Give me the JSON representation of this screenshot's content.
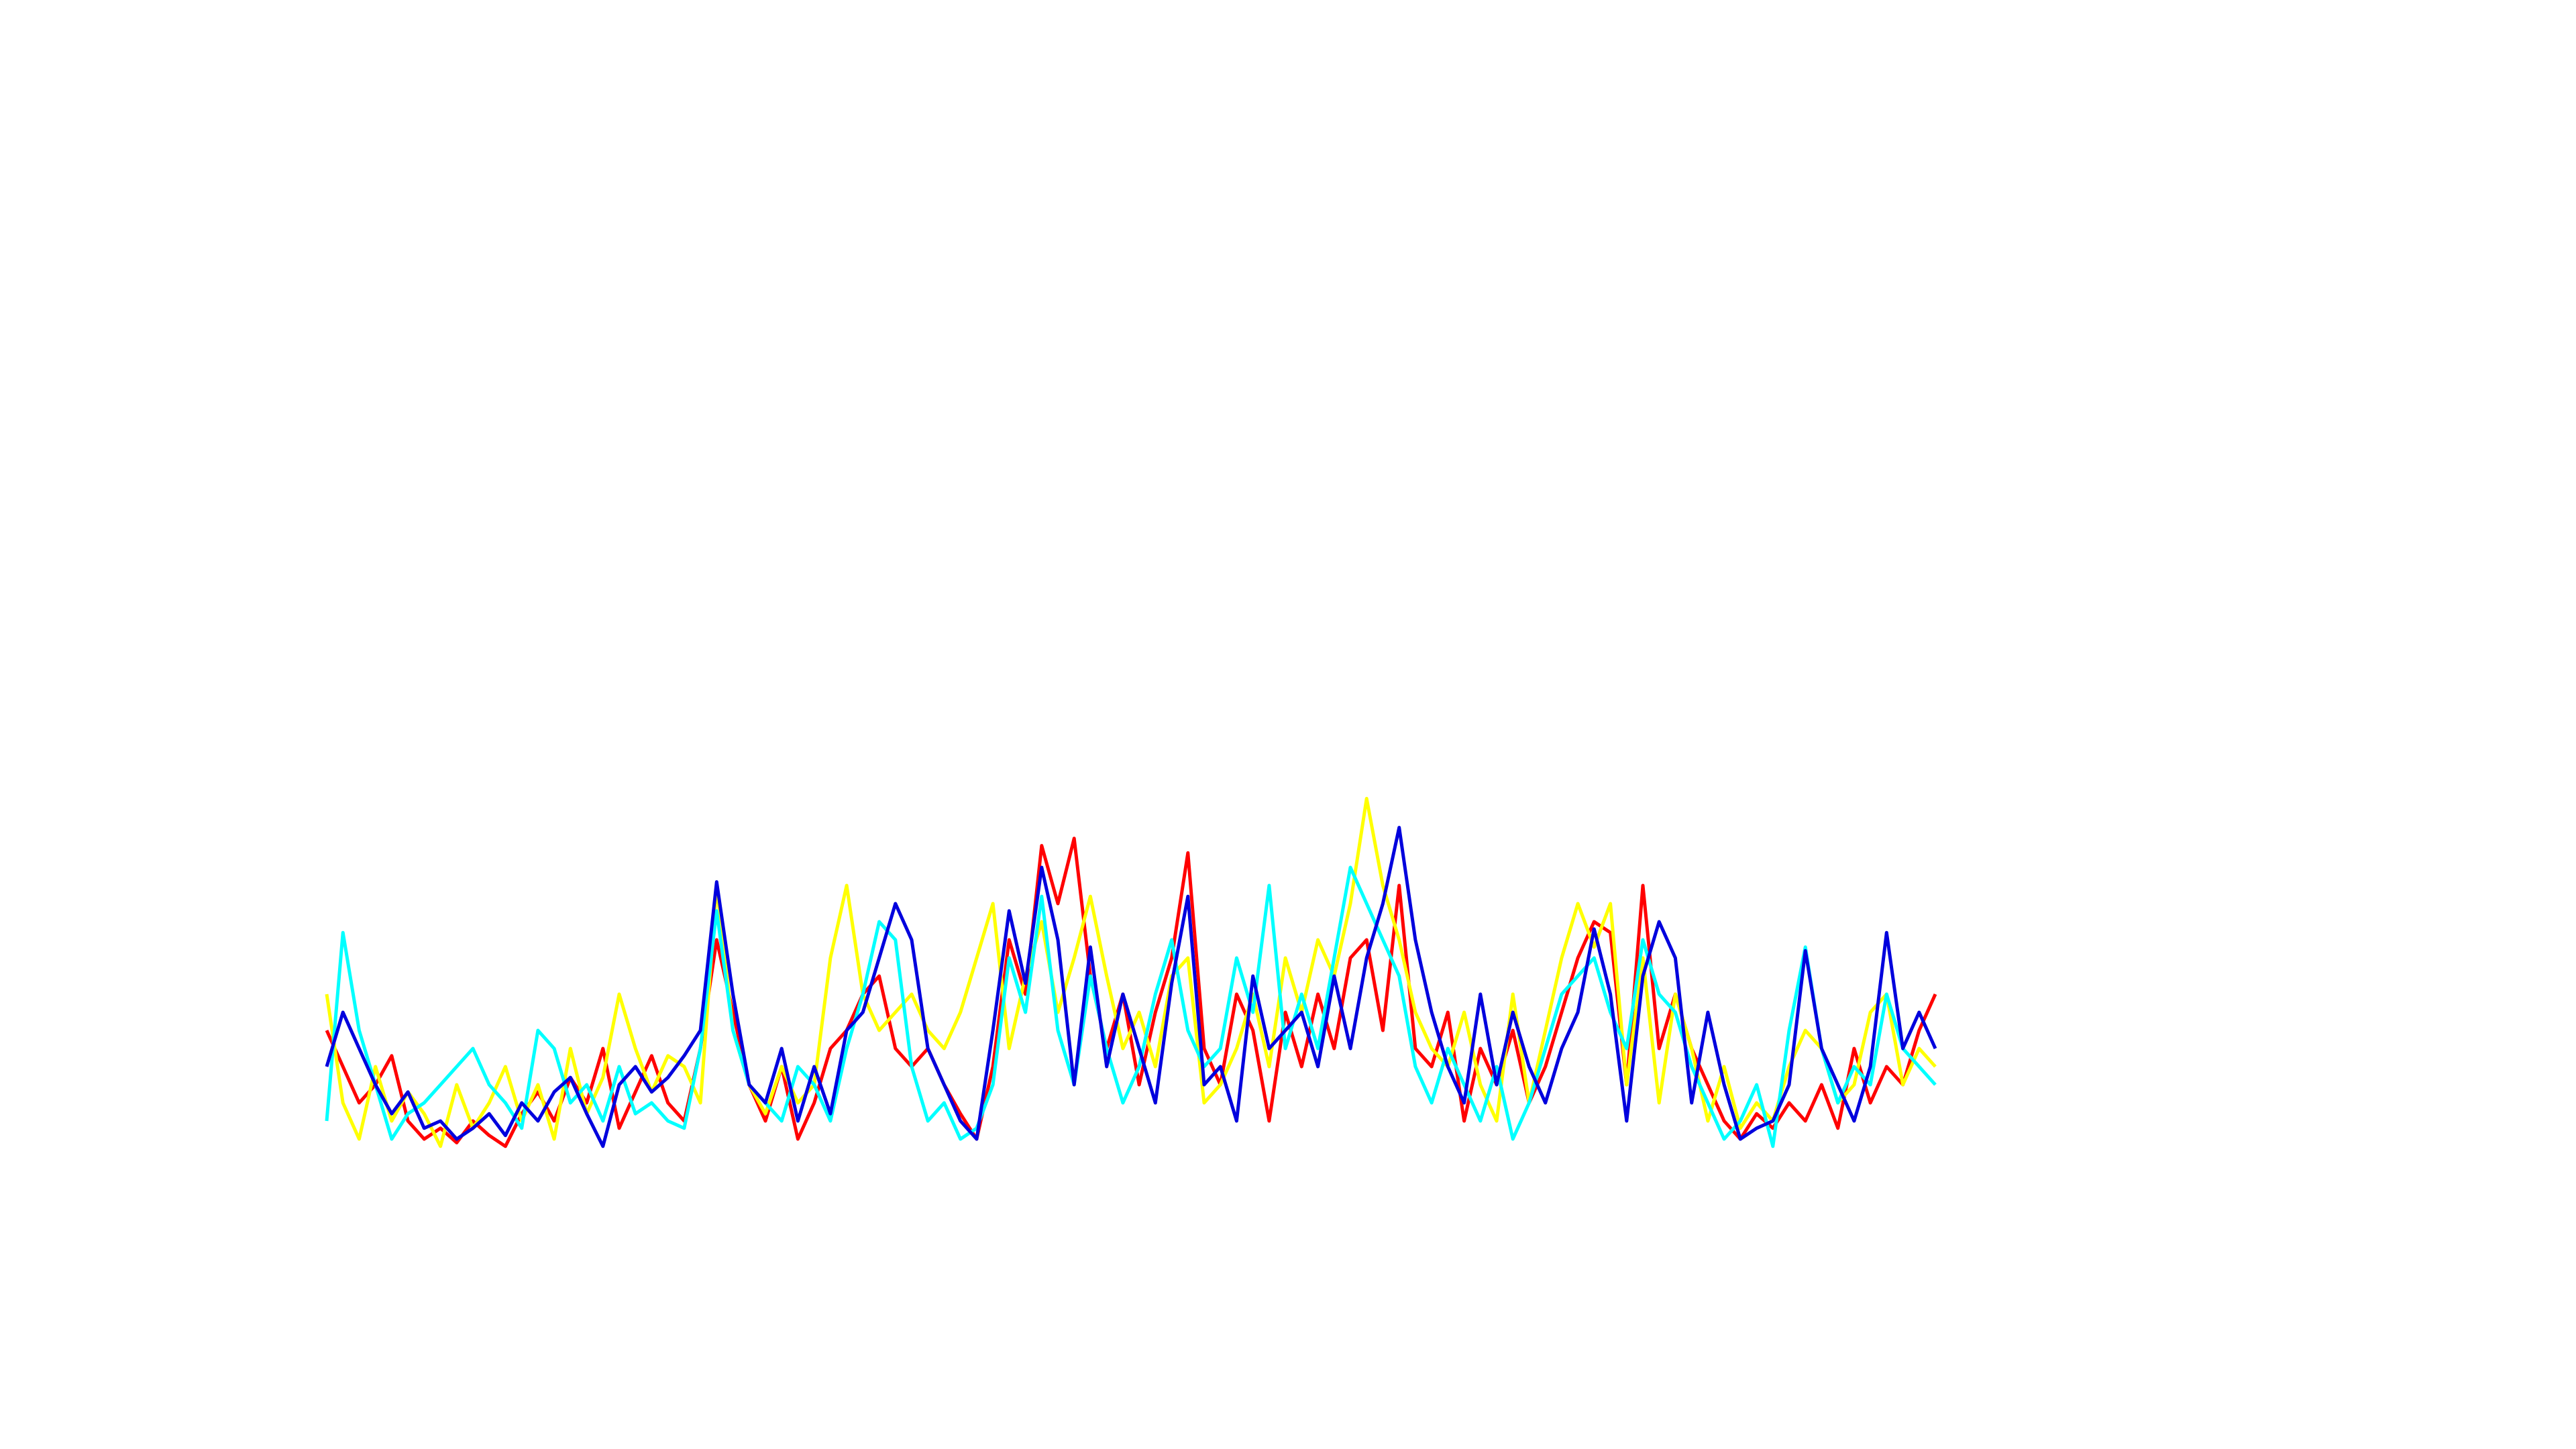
{
  "chart_data": {
    "type": "line",
    "ylim": [
      0,
      100
    ],
    "series": [
      {
        "color": "#ff0000",
        "values": [
          35,
          25,
          15,
          20,
          28,
          10,
          5,
          8,
          4,
          10,
          6,
          3,
          12,
          18,
          10,
          22,
          15,
          30,
          8,
          18,
          28,
          15,
          10,
          30,
          60,
          40,
          20,
          10,
          25,
          5,
          15,
          30,
          35,
          45,
          50,
          30,
          25,
          30,
          20,
          12,
          5,
          25,
          60,
          45,
          86,
          70,
          88,
          50,
          30,
          45,
          20,
          40,
          55,
          84,
          30,
          20,
          45,
          35,
          10,
          40,
          25,
          45,
          30,
          55,
          60,
          35,
          75,
          30,
          25,
          40,
          10,
          30,
          20,
          35,
          15,
          25,
          40,
          55,
          65,
          62,
          20,
          75,
          30,
          45,
          30,
          20,
          10,
          5,
          12,
          8,
          15,
          10,
          20,
          8,
          30,
          15,
          25,
          20,
          35,
          45
        ]
      },
      {
        "color": "#ffff00",
        "values": [
          45,
          15,
          5,
          25,
          10,
          18,
          12,
          3,
          20,
          8,
          15,
          25,
          10,
          20,
          5,
          30,
          12,
          22,
          45,
          30,
          18,
          28,
          25,
          15,
          75,
          35,
          20,
          12,
          25,
          15,
          20,
          55,
          75,
          45,
          35,
          40,
          45,
          35,
          30,
          40,
          55,
          70,
          30,
          50,
          65,
          40,
          55,
          72,
          50,
          30,
          40,
          25,
          50,
          55,
          15,
          20,
          30,
          45,
          25,
          55,
          40,
          60,
          50,
          70,
          99,
          75,
          60,
          40,
          30,
          25,
          40,
          20,
          10,
          45,
          15,
          35,
          55,
          70,
          58,
          70,
          20,
          55,
          15,
          45,
          30,
          10,
          25,
          8,
          15,
          10,
          25,
          35,
          30,
          15,
          20,
          40,
          45,
          20,
          30,
          25
        ]
      },
      {
        "color": "#00ffff",
        "values": [
          10,
          62,
          35,
          20,
          5,
          12,
          15,
          20,
          25,
          30,
          20,
          15,
          8,
          35,
          30,
          15,
          20,
          10,
          25,
          12,
          15,
          10,
          8,
          30,
          68,
          35,
          20,
          15,
          10,
          25,
          20,
          10,
          30,
          45,
          65,
          60,
          25,
          10,
          15,
          5,
          8,
          20,
          55,
          40,
          72,
          35,
          20,
          50,
          30,
          15,
          25,
          45,
          60,
          35,
          25,
          30,
          55,
          40,
          75,
          30,
          45,
          30,
          55,
          80,
          70,
          60,
          50,
          25,
          15,
          30,
          20,
          10,
          25,
          5,
          15,
          30,
          45,
          50,
          55,
          40,
          30,
          60,
          45,
          40,
          25,
          15,
          5,
          10,
          20,
          3,
          35,
          58,
          30,
          15,
          25,
          20,
          45,
          30,
          25,
          20
        ]
      },
      {
        "color": "#0000dd",
        "values": [
          25,
          40,
          30,
          20,
          12,
          18,
          8,
          10,
          5,
          8,
          12,
          6,
          15,
          10,
          18,
          22,
          12,
          3,
          20,
          25,
          18,
          22,
          28,
          35,
          76,
          45,
          20,
          15,
          30,
          10,
          25,
          12,
          35,
          40,
          55,
          70,
          60,
          30,
          20,
          10,
          5,
          35,
          68,
          48,
          80,
          60,
          20,
          58,
          25,
          45,
          30,
          15,
          48,
          72,
          20,
          25,
          10,
          50,
          30,
          35,
          40,
          25,
          50,
          30,
          55,
          70,
          91,
          60,
          40,
          25,
          15,
          45,
          20,
          40,
          25,
          15,
          30,
          40,
          63,
          45,
          10,
          50,
          65,
          55,
          15,
          40,
          20,
          5,
          8,
          10,
          20,
          57,
          30,
          20,
          10,
          25,
          62,
          30,
          40,
          30
        ]
      }
    ]
  }
}
